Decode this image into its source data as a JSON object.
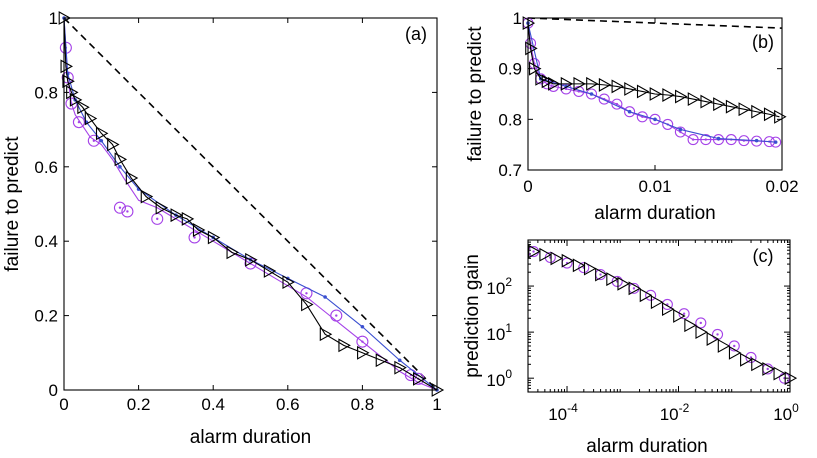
{
  "colors": {
    "axis": "#000000",
    "purple": "#a542e8",
    "blue": "#3a4fd0",
    "black": "#000000"
  },
  "chart_data": [
    {
      "type": "line",
      "panel_label": "(a)",
      "xlabel": "alarm duration",
      "ylabel": "failure to predict",
      "xlim": [
        0,
        1
      ],
      "ylim": [
        0,
        1
      ],
      "xticks": [
        0,
        0.2,
        0.4,
        0.6,
        0.8,
        1
      ],
      "xtick_labels": [
        "0",
        "0.2",
        "0.4",
        "0.6",
        "0.8",
        "1"
      ],
      "yticks": [
        0,
        0.2,
        0.4,
        0.6,
        0.8,
        1
      ],
      "ytick_labels": [
        "0",
        "0.2",
        "0.4",
        "0.6",
        "0.8",
        "1"
      ],
      "series": [
        {
          "name": "random",
          "style": "dashed",
          "color": "#000000",
          "x": [
            0,
            1
          ],
          "y": [
            1,
            0
          ]
        },
        {
          "name": "purple circles",
          "style": "line-circle",
          "color": "#a542e8",
          "x": [
            0,
            0.005,
            0.01,
            0.02,
            0.03,
            0.05,
            0.07,
            0.1,
            0.13,
            0.16,
            0.2,
            0.25,
            0.3,
            0.35,
            0.4,
            0.45,
            0.5,
            0.55,
            0.6,
            0.65,
            0.7,
            0.75,
            0.8,
            0.85,
            0.9,
            0.95,
            1.0
          ],
          "y": [
            1.0,
            0.92,
            0.84,
            0.77,
            0.74,
            0.71,
            0.68,
            0.66,
            0.62,
            0.57,
            0.51,
            0.49,
            0.46,
            0.43,
            0.4,
            0.37,
            0.34,
            0.31,
            0.28,
            0.25,
            0.21,
            0.17,
            0.13,
            0.09,
            0.05,
            0.02,
            0.0
          ],
          "markers_x": [
            0.005,
            0.01,
            0.02,
            0.04,
            0.08,
            0.15,
            0.17,
            0.25,
            0.35,
            0.5,
            0.65,
            0.73,
            0.8,
            0.93,
            0.95
          ],
          "markers_y": [
            0.92,
            0.84,
            0.77,
            0.72,
            0.67,
            0.49,
            0.48,
            0.46,
            0.41,
            0.34,
            0.26,
            0.2,
            0.13,
            0.04,
            0.03
          ]
        },
        {
          "name": "blue dots",
          "style": "line-dot",
          "color": "#3a4fd0",
          "x": [
            0,
            0.01,
            0.03,
            0.06,
            0.1,
            0.15,
            0.2,
            0.3,
            0.4,
            0.5,
            0.6,
            0.7,
            0.8,
            0.9,
            1.0
          ],
          "y": [
            1.0,
            0.85,
            0.78,
            0.72,
            0.67,
            0.6,
            0.54,
            0.47,
            0.41,
            0.35,
            0.3,
            0.25,
            0.17,
            0.08,
            0.0
          ]
        },
        {
          "name": "black triangles",
          "style": "line-triangle",
          "color": "#000000",
          "x": [
            0,
            0.005,
            0.01,
            0.02,
            0.03,
            0.05,
            0.07,
            0.1,
            0.13,
            0.15,
            0.18,
            0.22,
            0.26,
            0.3,
            0.33,
            0.36,
            0.4,
            0.45,
            0.5,
            0.55,
            0.6,
            0.65,
            0.7,
            0.75,
            0.8,
            0.85,
            0.9,
            0.95,
            1.0
          ],
          "y": [
            1.0,
            0.87,
            0.83,
            0.8,
            0.78,
            0.76,
            0.73,
            0.69,
            0.66,
            0.62,
            0.57,
            0.52,
            0.49,
            0.47,
            0.46,
            0.43,
            0.41,
            0.37,
            0.35,
            0.32,
            0.29,
            0.23,
            0.15,
            0.12,
            0.1,
            0.08,
            0.06,
            0.03,
            0.0
          ]
        }
      ]
    },
    {
      "type": "line",
      "panel_label": "(b)",
      "xlabel": "alarm duration",
      "ylabel": "failure to predict",
      "xlim": [
        0,
        0.02
      ],
      "ylim": [
        0.7,
        1
      ],
      "xticks": [
        0,
        0.01,
        0.02
      ],
      "xtick_labels": [
        "0",
        "0.01",
        "0.02"
      ],
      "yticks": [
        0.7,
        0.8,
        0.9,
        1
      ],
      "ytick_labels": [
        "0.7",
        "0.8",
        "0.9",
        "1"
      ],
      "series": [
        {
          "name": "random",
          "style": "dashed",
          "color": "#000000",
          "x": [
            0,
            0.02
          ],
          "y": [
            1.0,
            0.98
          ]
        },
        {
          "name": "purple circles",
          "style": "line-circle",
          "color": "#a542e8",
          "x": [
            0,
            0.0002,
            0.0005,
            0.001,
            0.0015,
            0.002,
            0.003,
            0.004,
            0.005,
            0.006,
            0.007,
            0.008,
            0.009,
            0.01,
            0.011,
            0.012,
            0.013,
            0.014,
            0.015,
            0.016,
            0.017,
            0.018,
            0.019,
            0.0195
          ],
          "y": [
            0.99,
            0.95,
            0.91,
            0.88,
            0.87,
            0.865,
            0.86,
            0.855,
            0.85,
            0.84,
            0.83,
            0.815,
            0.805,
            0.8,
            0.79,
            0.775,
            0.76,
            0.76,
            0.76,
            0.76,
            0.758,
            0.757,
            0.756,
            0.755
          ]
        },
        {
          "name": "blue dots",
          "style": "line-dot",
          "color": "#3a4fd0",
          "x": [
            0,
            0.001,
            0.003,
            0.005,
            0.008,
            0.01,
            0.012,
            0.015,
            0.018,
            0.0195
          ],
          "y": [
            0.99,
            0.88,
            0.865,
            0.85,
            0.815,
            0.8,
            0.78,
            0.762,
            0.758,
            0.755
          ]
        },
        {
          "name": "black triangles",
          "style": "line-triangle",
          "color": "#000000",
          "x": [
            0,
            0.0002,
            0.0005,
            0.001,
            0.0015,
            0.002,
            0.003,
            0.004,
            0.005,
            0.006,
            0.007,
            0.008,
            0.009,
            0.01,
            0.011,
            0.012,
            0.013,
            0.014,
            0.015,
            0.016,
            0.017,
            0.018,
            0.019,
            0.0198
          ],
          "y": [
            0.99,
            0.94,
            0.9,
            0.88,
            0.875,
            0.87,
            0.87,
            0.87,
            0.87,
            0.868,
            0.865,
            0.86,
            0.855,
            0.85,
            0.848,
            0.845,
            0.84,
            0.835,
            0.83,
            0.825,
            0.82,
            0.815,
            0.81,
            0.805
          ]
        }
      ]
    },
    {
      "type": "scatter",
      "panel_label": "(c)",
      "xlabel": "alarm duration",
      "ylabel": "prediction gain",
      "xscale": "log",
      "yscale": "log",
      "xlim_exp": [
        -4.7,
        0
      ],
      "ylim_exp": [
        -0.3,
        3
      ],
      "xticks_exp": [
        -4,
        -2,
        0
      ],
      "xtick_labels": [
        "10",
        "10",
        "10"
      ],
      "xtick_exponents": [
        "-4",
        "-2",
        "0"
      ],
      "yticks_exp": [
        0,
        1,
        2
      ],
      "ytick_labels": [
        "10",
        "10",
        "10"
      ],
      "ytick_exponents": [
        "0",
        "1",
        "2"
      ],
      "series": [
        {
          "name": "purple circles",
          "style": "circle",
          "color": "#a542e8",
          "x_exp": [
            -4.6,
            -4.3,
            -4.0,
            -3.7,
            -3.4,
            -3.1,
            -2.8,
            -2.5,
            -2.2,
            -1.9,
            -1.6,
            -1.3,
            -1.0,
            -0.7,
            -0.4,
            -0.1
          ],
          "y_exp": [
            2.75,
            2.62,
            2.5,
            2.4,
            2.25,
            2.1,
            1.95,
            1.8,
            1.6,
            1.4,
            1.2,
            0.95,
            0.7,
            0.45,
            0.2,
            0.0
          ]
        },
        {
          "name": "black triangles",
          "style": "triangle",
          "color": "#000000",
          "x_exp": [
            -4.6,
            -4.4,
            -4.2,
            -4.0,
            -3.8,
            -3.6,
            -3.4,
            -3.2,
            -3.0,
            -2.8,
            -2.6,
            -2.4,
            -2.2,
            -2.0,
            -1.8,
            -1.6,
            -1.4,
            -1.2,
            -1.0,
            -0.8,
            -0.6,
            -0.4,
            -0.2,
            0.0
          ],
          "y_exp": [
            2.75,
            2.68,
            2.6,
            2.55,
            2.45,
            2.38,
            2.25,
            2.15,
            2.05,
            1.95,
            1.8,
            1.65,
            1.5,
            1.35,
            1.15,
            1.0,
            0.85,
            0.7,
            0.55,
            0.4,
            0.3,
            0.2,
            0.1,
            0.0
          ]
        }
      ]
    }
  ]
}
